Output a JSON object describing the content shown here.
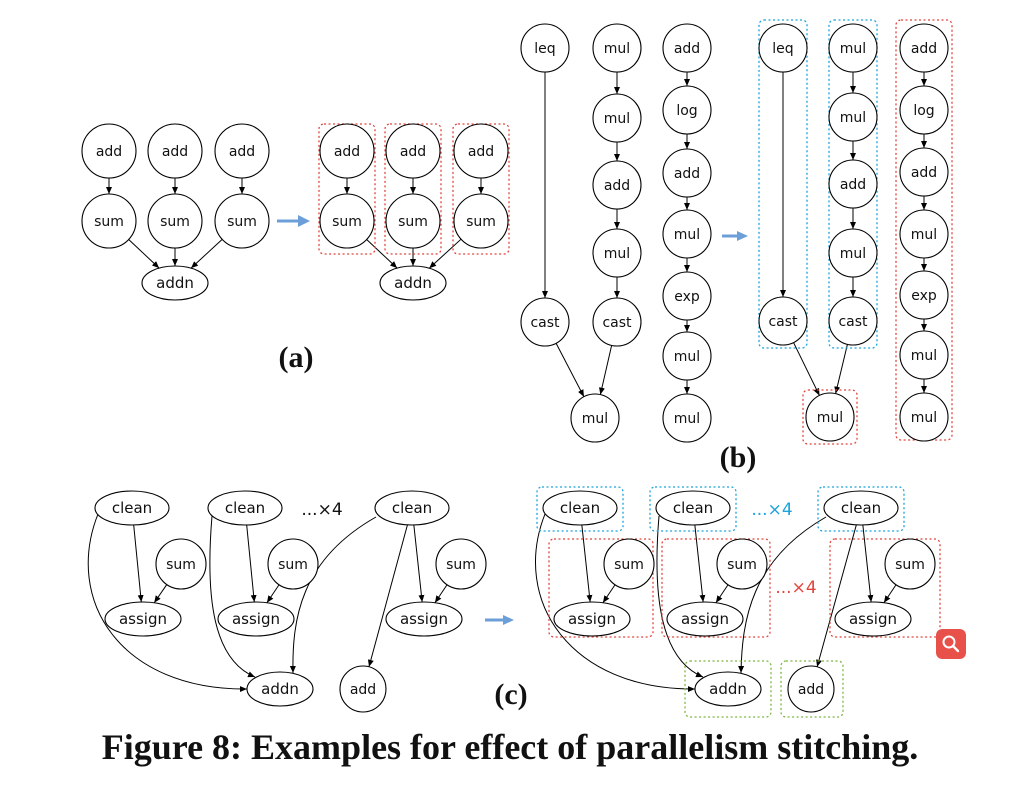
{
  "labels": {
    "add": "add",
    "sum": "sum",
    "addn": "addn",
    "leq": "leq",
    "mul": "mul",
    "log": "log",
    "exp": "exp",
    "cast": "cast",
    "clean": "clean",
    "assign": "assign"
  },
  "reps_label": "...×4",
  "subfigures": {
    "a": "(a)",
    "b": "(b)",
    "c": "(c)"
  },
  "caption": "Figure 8: Examples for effect of parallelism stitching.",
  "colors": {
    "red_group": "#e2453c",
    "blue_group": "#1aa3dc",
    "green_group": "#7cb73f",
    "arrow": "#6c9fd8",
    "search_button": "#e8504a"
  },
  "search_button_icon": "magnifier-icon"
}
